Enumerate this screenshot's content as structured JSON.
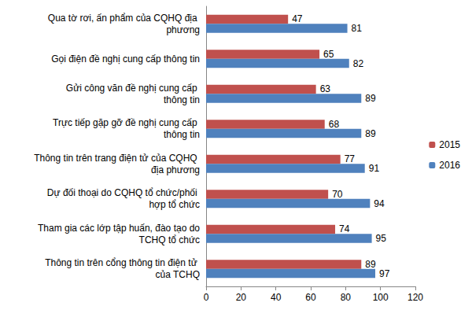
{
  "chart_data": {
    "type": "bar",
    "orientation": "horizontal",
    "categories": [
      "Qua tờ rơi, ấn phẩm của CQHQ địa phương",
      "Gọi điện đề nghị cung cấp thông tin",
      "Gửi công văn đề nghị cung cấp thông tin",
      "Trực tiếp gặp gỡ đề nghị cung cấp thông tin",
      "Thông tin trên trang điện tử của CQHQ địa phương",
      "Dự đối thoại do CQHQ tổ chức/phối hợp tổ chức",
      "Tham gia các lớp tập huấn, đào tạo do TCHQ tổ chức",
      "Thông tin trên cổng thông tin điện tử của TCHQ"
    ],
    "series": [
      {
        "name": "2015",
        "color": "#c0504d",
        "values": [
          47,
          65,
          63,
          68,
          77,
          70,
          74,
          89
        ]
      },
      {
        "name": "2016",
        "color": "#4f81bd",
        "values": [
          81,
          82,
          89,
          89,
          91,
          94,
          95,
          97
        ]
      }
    ],
    "xlim": [
      0,
      120
    ],
    "xticks": [
      0,
      20,
      40,
      60,
      80,
      100,
      120
    ],
    "grid": false,
    "legend": "right",
    "data_labels": true
  }
}
